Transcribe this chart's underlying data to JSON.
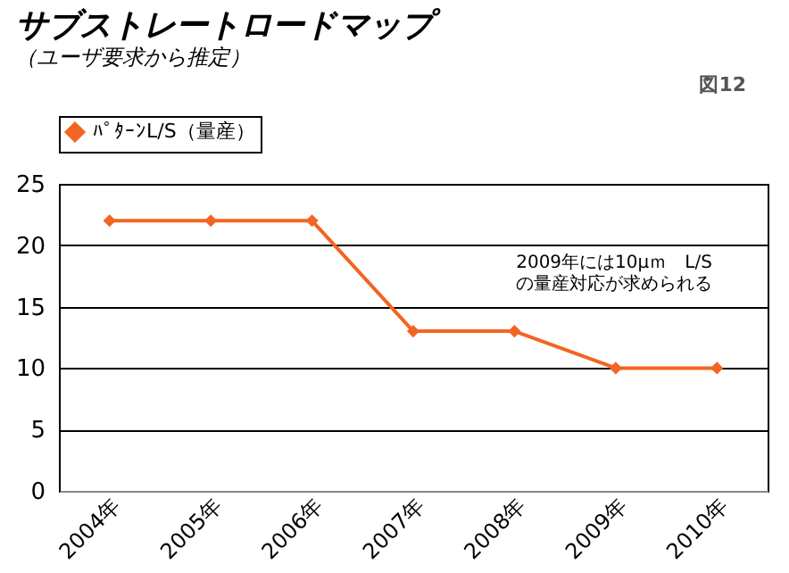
{
  "chart_data": {
    "type": "line",
    "title": "サブストレートロードマップ",
    "subtitle": "（ユーザ要求から推定）",
    "categories": [
      "2004年",
      "2005年",
      "2006年",
      "2007年",
      "2008年",
      "2009年",
      "2010年"
    ],
    "series": [
      {
        "name": "ﾊﾟﾀｰﾝL/S（量産）",
        "color": "#f26522",
        "values": [
          22,
          22,
          22,
          13,
          13,
          10,
          10
        ]
      }
    ],
    "ylim": [
      0,
      25
    ],
    "yticks": [
      0,
      5,
      10,
      15,
      20,
      25
    ],
    "grid": "y",
    "legend": "top",
    "marker": "diamond",
    "line_style": "solid",
    "annotations": [
      "図12",
      "2009年には10μｍ　L/S\nの量産対応が求められる"
    ]
  }
}
